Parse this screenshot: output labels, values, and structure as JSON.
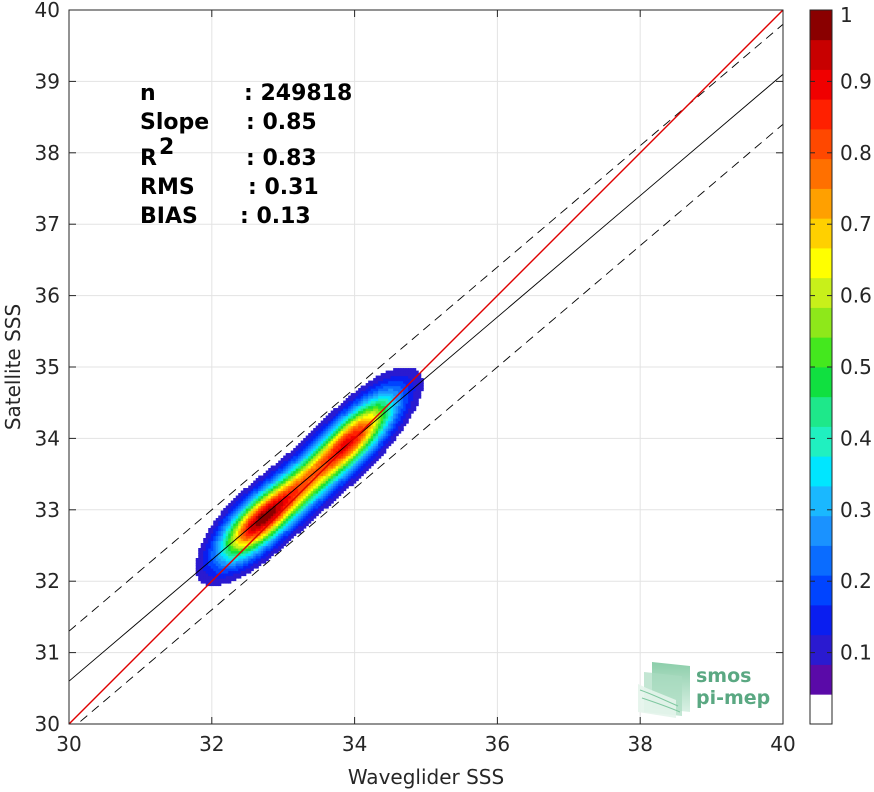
{
  "chart_data": {
    "type": "density-scatter",
    "xlabel": "Waveglider SSS",
    "ylabel": "Satellite SSS",
    "xlim": [
      30,
      40
    ],
    "ylim": [
      30,
      40
    ],
    "xticks": [
      30,
      32,
      34,
      36,
      38,
      40
    ],
    "yticks": [
      30,
      31,
      32,
      33,
      34,
      35,
      36,
      37,
      38,
      39,
      40
    ],
    "grid": true,
    "stats": [
      {
        "label": "n",
        "value": ": 249818"
      },
      {
        "label": "Slope",
        "value": ": 0.85"
      },
      {
        "label": "R",
        "sup": "2",
        "value": ": 0.83"
      },
      {
        "label": "RMS",
        "value": ": 0.31"
      },
      {
        "label": "BIAS",
        "value": ": 0.13"
      }
    ],
    "lines": {
      "one_to_one": {
        "slope": 1,
        "intercept": 0,
        "color": "#e00000"
      },
      "fit": {
        "slope": 0.85,
        "intercept": 5.1,
        "color": "#000000"
      },
      "fit_upper": {
        "slope": 0.85,
        "intercept": 5.8,
        "style": "dashed"
      },
      "fit_lower": {
        "slope": 0.85,
        "intercept": 4.4,
        "style": "dashed"
      }
    },
    "density_peaks": [
      {
        "x": 32.75,
        "y": 32.9,
        "value": 1.0
      },
      {
        "x": 33.45,
        "y": 33.5,
        "value": 0.72
      },
      {
        "x": 34.15,
        "y": 34.2,
        "value": 0.72
      }
    ],
    "colorbar": {
      "ticks": [
        0.1,
        0.2,
        0.3,
        0.4,
        0.5,
        0.6,
        0.7,
        0.8,
        0.9,
        1
      ],
      "colors": [
        "#ffffff",
        "#5a0aa8",
        "#2a1ad0",
        "#0a1ef0",
        "#0044ff",
        "#0a6cff",
        "#1a92ff",
        "#1ab8ff",
        "#00e6ff",
        "#20f0c0",
        "#1ee88a",
        "#10e040",
        "#44e81e",
        "#8ee81a",
        "#c8f01a",
        "#ffff00",
        "#ffd000",
        "#ffa000",
        "#ff7000",
        "#ff4800",
        "#ff2000",
        "#f00000",
        "#c80000",
        "#8a0000"
      ]
    },
    "logo_text": [
      "smos",
      "pi-mep"
    ]
  }
}
